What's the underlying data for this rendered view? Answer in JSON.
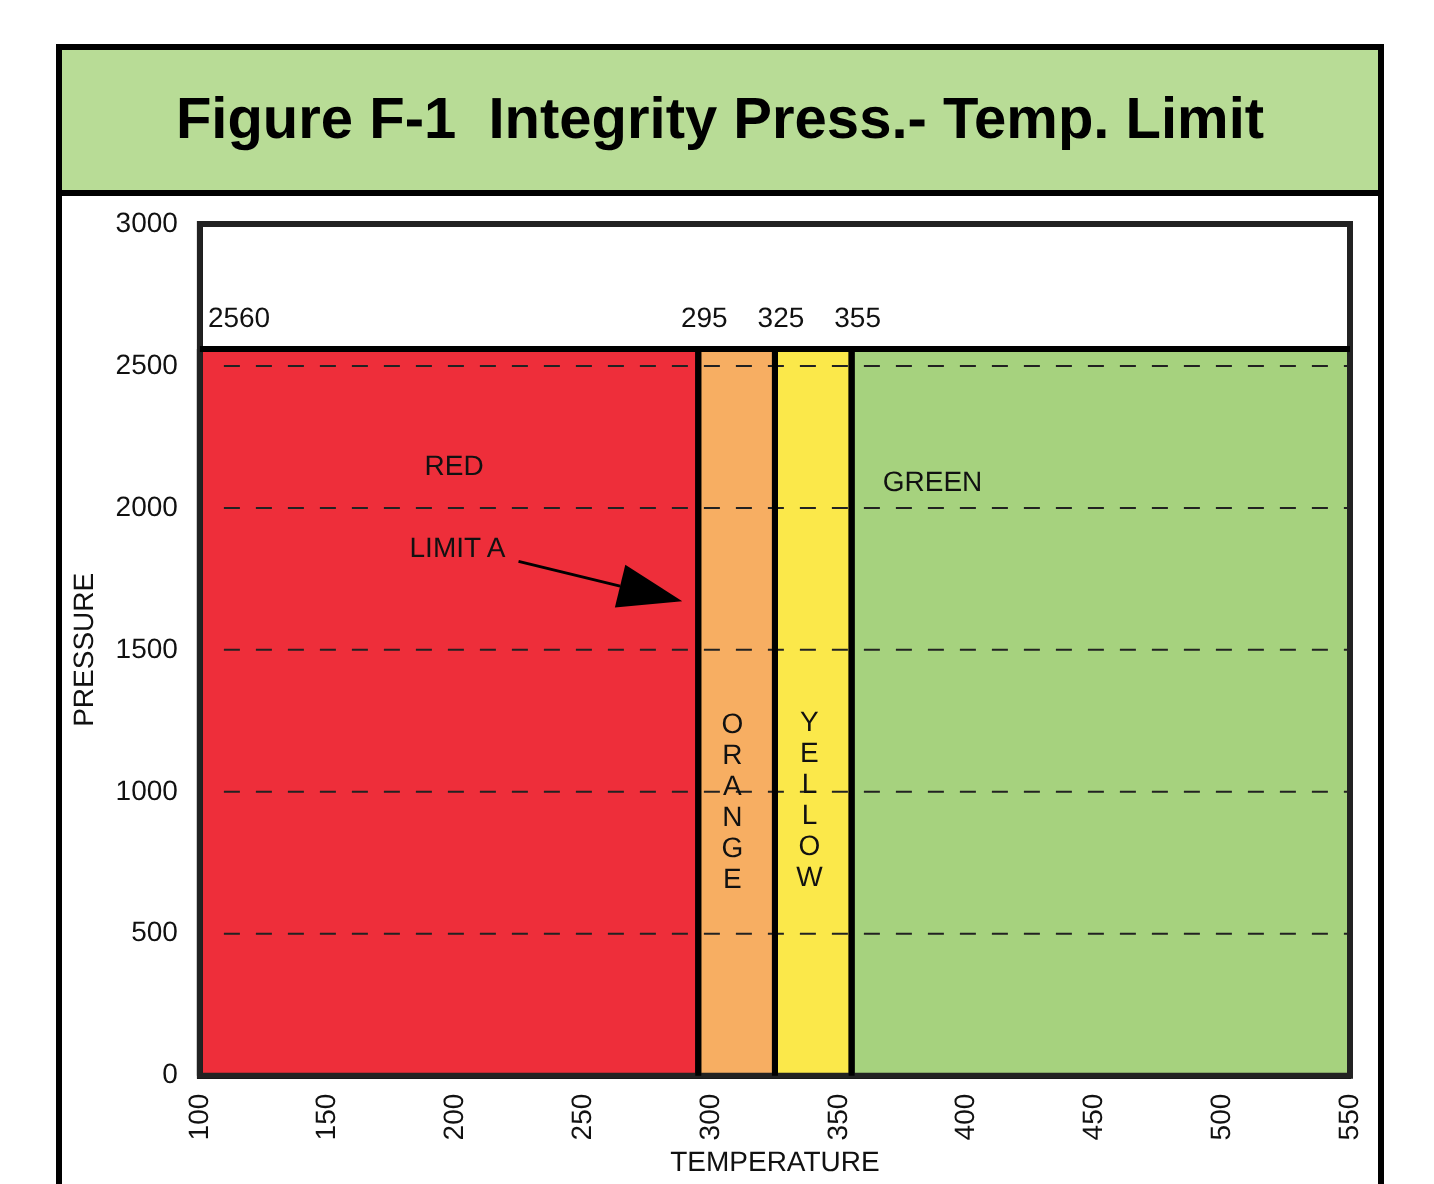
{
  "chart_data": {
    "type": "histogram",
    "title": "Figure F-1  Integrity Press.- Temp. Limit",
    "xlabel": "TEMPERATURE",
    "ylabel": "PRESSURE",
    "bins": [
      100,
      295,
      325,
      355,
      550
    ],
    "values": [
      2560,
      2560,
      2560,
      2560
    ],
    "colors": [
      "#ee2e3a",
      "#f7ae62",
      "#fbe84a",
      "#a6d27e"
    ],
    "xlim": [
      100,
      550
    ],
    "xticks": [
      100,
      150,
      200,
      250,
      300,
      350,
      400,
      450,
      500,
      550
    ],
    "ylim": [
      0,
      3000
    ],
    "yticks": [
      0,
      500,
      1000,
      1500,
      2000,
      2500,
      3000
    ],
    "grid": "y",
    "ref_lines": [
      {
        "axis": "y",
        "value": 2560,
        "label": "2560"
      },
      {
        "axis": "x",
        "value": 295,
        "label": "295"
      },
      {
        "axis": "x",
        "value": 325,
        "label": "325"
      },
      {
        "axis": "x",
        "value": 355,
        "label": "355"
      }
    ],
    "annotations": [
      "RED",
      "ORANGE",
      "YELLOW",
      "GREEN",
      "LIMIT A"
    ]
  }
}
